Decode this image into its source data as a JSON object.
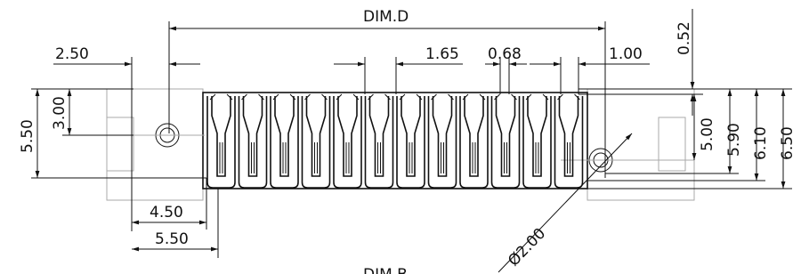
{
  "dimensions": [
    "DIM.D",
    "2.50",
    "1.65",
    "0.68",
    "1.00",
    "0.52",
    "5.50",
    "3.00",
    "5.00",
    "5.90",
    "6.10",
    "6.50",
    "4.50",
    "5.50",
    "Ø2.00",
    "DIM.B"
  ]
}
